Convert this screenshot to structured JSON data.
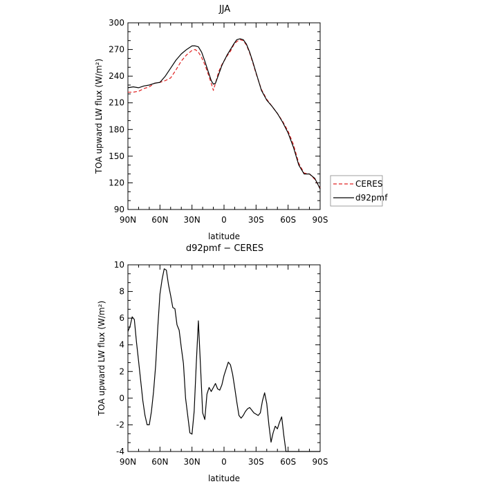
{
  "colors": {
    "ceres": "#e02020",
    "d92pmf": "#000000"
  },
  "chart_data": [
    {
      "type": "line",
      "title": "JJA",
      "xlabel": "latitude",
      "ylabel": "TOA upward LW flux (W/m²)",
      "ylim": [
        90,
        300
      ],
      "xlim": [
        90,
        -90
      ],
      "yticks": [
        90,
        120,
        150,
        180,
        210,
        240,
        270,
        300
      ],
      "xticks": [
        90,
        60,
        30,
        0,
        -30,
        -60,
        -90
      ],
      "xticklabels": [
        "90N",
        "60N",
        "30N",
        "0",
        "30S",
        "60S",
        "90S"
      ],
      "legend": {
        "placement": "right",
        "entries": [
          "CERES",
          "d92pmf"
        ]
      },
      "series": [
        {
          "name": "CERES",
          "style": "dashed",
          "x": [
            90,
            85,
            80,
            75,
            70,
            65,
            60,
            55,
            50,
            45,
            40,
            35,
            30,
            27,
            24,
            21,
            18,
            15,
            12,
            10,
            8,
            5,
            2,
            0,
            -3,
            -6,
            -9,
            -12,
            -15,
            -18,
            -21,
            -24,
            -27,
            -30,
            -35,
            -40,
            -45,
            -50,
            -55,
            -60,
            -65,
            -70,
            -75,
            -80,
            -85,
            -88,
            -90
          ],
          "values": [
            222,
            222,
            223,
            226,
            228,
            232,
            233,
            235,
            238,
            247,
            257,
            264,
            269,
            270,
            267,
            261,
            253,
            243,
            232,
            224,
            232,
            245,
            253,
            257,
            263,
            268,
            275,
            279,
            281,
            280,
            275,
            266,
            255,
            243,
            225,
            214,
            206,
            198,
            189,
            178,
            163,
            142,
            131,
            130,
            124,
            118,
            114
          ]
        },
        {
          "name": "d92pmf",
          "style": "solid",
          "x": [
            90,
            85,
            80,
            75,
            70,
            65,
            60,
            55,
            50,
            45,
            40,
            35,
            30,
            27,
            24,
            21,
            18,
            15,
            12,
            10,
            8,
            5,
            2,
            0,
            -3,
            -6,
            -9,
            -12,
            -15,
            -18,
            -21,
            -24,
            -27,
            -30,
            -35,
            -40,
            -45,
            -50,
            -55,
            -60,
            -65,
            -70,
            -75,
            -80,
            -85,
            -88,
            -90
          ],
          "values": [
            227,
            228,
            227,
            229,
            230,
            232,
            233,
            240,
            249,
            258,
            265,
            270,
            274,
            274,
            273,
            267,
            257,
            246,
            235,
            231,
            232,
            242,
            252,
            257,
            264,
            270,
            276,
            281,
            282,
            281,
            276,
            267,
            256,
            244,
            224,
            213,
            206,
            198,
            188,
            176,
            160,
            140,
            130,
            130,
            125,
            118,
            113
          ]
        }
      ]
    },
    {
      "type": "line",
      "title": "d92pmf − CERES",
      "xlabel": "latitude",
      "ylabel": "TOA upward LW flux (W/m²)",
      "ylim": [
        -4,
        10
      ],
      "xlim": [
        90,
        -90
      ],
      "yticks": [
        -4,
        -2,
        0,
        2,
        4,
        6,
        8,
        10
      ],
      "xticks": [
        90,
        60,
        30,
        0,
        -30,
        -60,
        -90
      ],
      "xticklabels": [
        "90N",
        "60N",
        "30N",
        "0",
        "30S",
        "60S",
        "90S"
      ],
      "series": [
        {
          "style": "solid",
          "x": [
            90,
            88,
            86,
            84,
            82,
            80,
            78,
            76,
            74,
            72,
            70,
            68,
            66,
            64,
            62,
            60,
            58,
            56,
            54,
            52,
            50,
            48,
            46,
            44,
            42,
            40,
            38,
            36,
            34,
            32,
            30,
            28,
            26,
            24,
            22,
            20,
            18,
            16,
            14,
            12,
            10,
            8,
            6,
            4,
            2,
            0,
            -2,
            -4,
            -6,
            -8,
            -10,
            -12,
            -14,
            -16,
            -18,
            -20,
            -22,
            -24,
            -26,
            -28,
            -30,
            -32,
            -34,
            -36,
            -38,
            -40,
            -42,
            -44,
            -46,
            -48,
            -50,
            -52,
            -54,
            -56,
            -58,
            -60,
            -62,
            -64,
            -66,
            -68,
            -70,
            -72,
            -74,
            -76,
            -78,
            -80,
            -82,
            -84,
            -86,
            -88,
            -90
          ],
          "values": [
            5.0,
            5.4,
            6.1,
            5.9,
            4.2,
            2.8,
            1.3,
            -0.2,
            -1.3,
            -2.0,
            -2.0,
            -1.0,
            0.5,
            2.5,
            5.3,
            7.8,
            8.9,
            9.7,
            9.6,
            8.5,
            7.7,
            6.8,
            6.7,
            5.5,
            5.1,
            3.8,
            2.6,
            0.0,
            -1.3,
            -2.6,
            -2.7,
            -1.0,
            2.5,
            5.8,
            2.4,
            -1.1,
            -1.6,
            0.3,
            0.8,
            0.5,
            0.8,
            1.1,
            0.7,
            0.6,
            1.0,
            1.7,
            2.2,
            2.7,
            2.5,
            1.8,
            0.8,
            -0.3,
            -1.3,
            -1.5,
            -1.3,
            -1.0,
            -0.8,
            -0.7,
            -0.9,
            -1.1,
            -1.2,
            -1.3,
            -1.1,
            -0.2,
            0.4,
            -0.4,
            -2.0,
            -3.3,
            -2.6,
            -2.1,
            -2.3,
            -1.8,
            -1.4,
            -2.8,
            -4.0,
            -4.0,
            -4.0,
            -4.0,
            -4.0,
            -4.0,
            -4.0,
            -4.0,
            -4.0,
            -4.0,
            -4.0,
            -4.0,
            -4.0,
            -4.0,
            -4.0,
            -4.0,
            -4.0
          ]
        }
      ]
    }
  ]
}
